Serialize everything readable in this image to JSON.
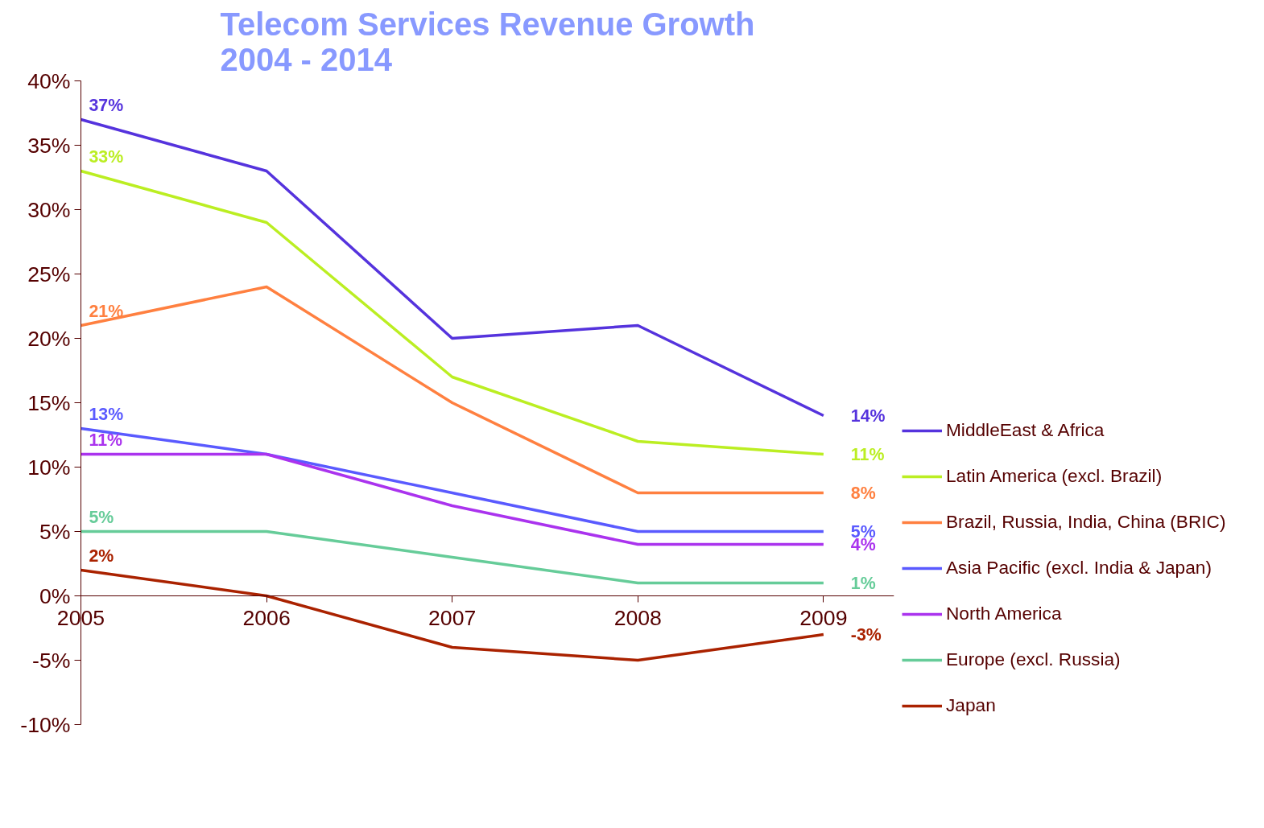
{
  "chart_data": {
    "type": "line",
    "title": "Telecom Services Revenue Growth\n2004 - 2014",
    "x": [
      2005,
      2006,
      2007,
      2008,
      2009
    ],
    "xlim": [
      2005,
      2009.38
    ],
    "xticks": [
      2005,
      2006,
      2007,
      2008,
      2009
    ],
    "ylim": [
      -10,
      40
    ],
    "yticks": [
      {
        "value": -10,
        "label": "-10%"
      },
      {
        "value": -5,
        "label": "-5%"
      },
      {
        "value": 0,
        "label": "0%"
      },
      {
        "value": 5,
        "label": "5%"
      },
      {
        "value": 10,
        "label": "10%"
      },
      {
        "value": 15,
        "label": "15%"
      },
      {
        "value": 20,
        "label": "20%"
      },
      {
        "value": 25,
        "label": "25%"
      },
      {
        "value": 30,
        "label": "30%"
      },
      {
        "value": 35,
        "label": "35%"
      },
      {
        "value": 40,
        "label": "40%"
      }
    ],
    "grid": false,
    "legend": "right",
    "marker": "none",
    "line_style": "solid",
    "series": [
      {
        "name": "MiddleEast & Africa",
        "color": "#5533dd",
        "values": [
          37,
          33,
          20,
          21,
          14
        ],
        "value_labels": [
          "37%",
          null,
          null,
          null,
          "14%"
        ]
      },
      {
        "name": "Latin America (excl. Brazil)",
        "color": "#bbee22",
        "values": [
          33,
          29,
          17,
          12,
          11
        ],
        "value_labels": [
          "33%",
          null,
          null,
          null,
          "11%"
        ]
      },
      {
        "name": "Brazil, Russia, India, China (BRIC)",
        "color": "#ff8040",
        "values": [
          21,
          24,
          15,
          8,
          8
        ],
        "value_labels": [
          "21%",
          null,
          null,
          null,
          "8%"
        ]
      },
      {
        "name": "Asia Pacific (excl. India & Japan)",
        "color": "#5a5aff",
        "values": [
          13,
          11,
          8,
          5,
          5
        ],
        "value_labels": [
          "13%",
          null,
          null,
          null,
          "5%"
        ]
      },
      {
        "name": "North America",
        "color": "#aa33ee",
        "values": [
          11,
          11,
          7,
          4,
          4
        ],
        "value_labels": [
          "11%",
          null,
          null,
          null,
          "4%"
        ]
      },
      {
        "name": "Europe (excl. Russia)",
        "color": "#66cc99",
        "values": [
          5,
          5,
          3,
          1,
          1
        ],
        "value_labels": [
          "5%",
          null,
          null,
          null,
          "1%"
        ]
      },
      {
        "name": "Japan",
        "color": "#aa2200",
        "values": [
          2,
          0,
          -4,
          -5,
          -3
        ],
        "value_labels": [
          "2%",
          null,
          null,
          null,
          "-3%"
        ]
      }
    ]
  }
}
